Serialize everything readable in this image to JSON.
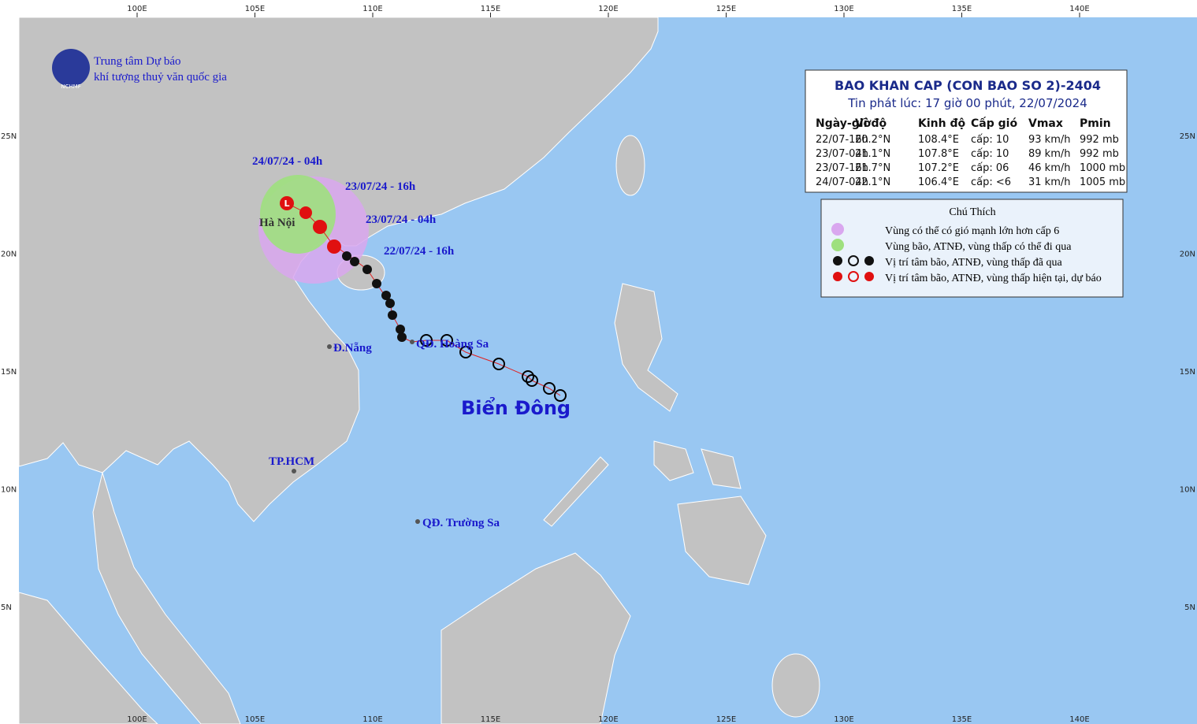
{
  "lon_labels": [
    "100E",
    "105E",
    "110E",
    "115E",
    "120E",
    "125E",
    "130E",
    "135E",
    "140E"
  ],
  "lat_labels": [
    "25N",
    "20N",
    "15N",
    "10N",
    "5N"
  ],
  "logo": {
    "line1": "Trung tâm Dự báo",
    "line2": "khí tượng thuỷ văn quốc gia",
    "badge": "NCHMF"
  },
  "bulletin": {
    "title": "BAO KHAN CAP (CON BAO SO 2)-2404",
    "issued": "Tin phát lúc: 17 giờ 00 phút, 22/07/2024",
    "columns": [
      "Ngày-giờ",
      "Vĩ độ",
      "Kinh độ",
      "Cấp gió",
      "Vmax",
      "Pmin"
    ],
    "rows": [
      [
        "22/07-16h",
        "20.2°N",
        "108.4°E",
        "cấp: 10",
        "93 km/h",
        "992 mb"
      ],
      [
        "23/07-04h",
        "21.1°N",
        "107.8°E",
        "cấp: 10",
        "89 km/h",
        "992 mb"
      ],
      [
        "23/07-16h",
        "21.7°N",
        "107.2°E",
        "cấp: 06",
        "46 km/h",
        "1000 mb"
      ],
      [
        "24/07-04h",
        "22.1°N",
        "106.4°E",
        "cấp: <6",
        "31 km/h",
        "1005 mb"
      ]
    ]
  },
  "legend": {
    "title": "Chú Thích",
    "items": [
      "Vùng có thể có gió mạnh lớn hơn cấp 6",
      "Vùng bão, ATNĐ, vùng thấp có thể đi qua",
      "Vị trí tâm bão, ATNĐ, vùng thấp đã qua",
      "Vị trí tâm bão, ATNĐ, vùng thấp hiện tại, dự báo"
    ]
  },
  "places": [
    "24/07/24 - 04h",
    "23/07/24 - 16h",
    "23/07/24 - 04h",
    "22/07/24 - 16h",
    "Hà Nội",
    "Đ.Nẵng",
    "QĐ. Hoàng Sa",
    "TP.HCM",
    "QĐ. Trường Sa",
    "Biển Đông"
  ]
}
